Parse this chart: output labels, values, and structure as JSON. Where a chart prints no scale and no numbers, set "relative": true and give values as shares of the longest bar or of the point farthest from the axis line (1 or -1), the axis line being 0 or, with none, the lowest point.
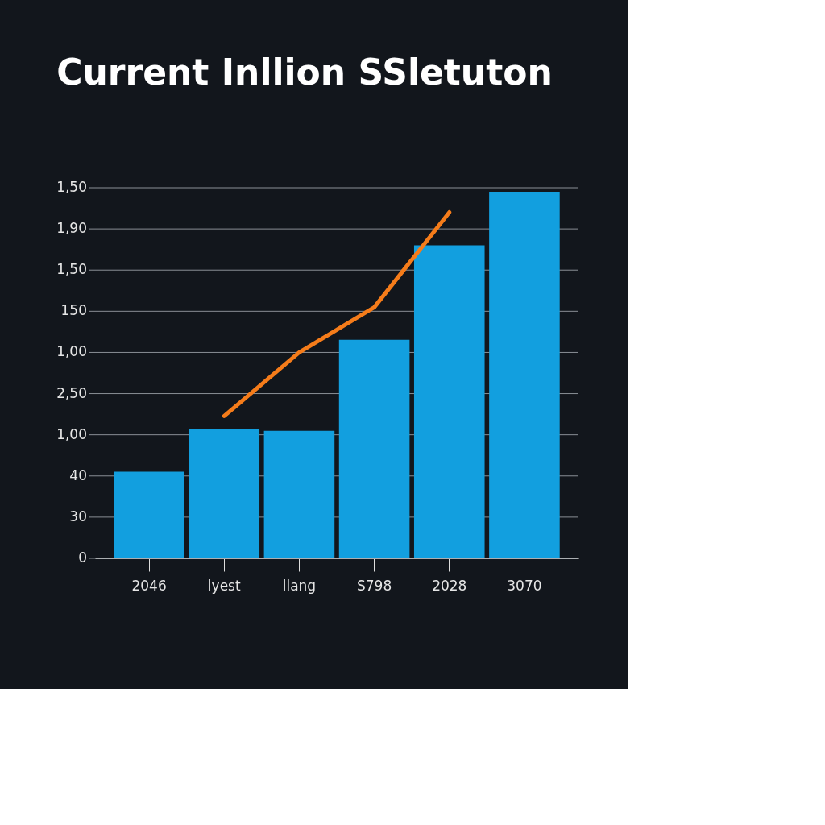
{
  "chart_data": {
    "type": "bar",
    "title": "Current Inllion SSletuton",
    "relative": true,
    "categories": [
      "2046",
      "lyest",
      "llang",
      "S798",
      "2028",
      "3070"
    ],
    "series": [
      {
        "color": "#129fdf",
        "values": [
          0.236,
          0.354,
          0.348,
          0.596,
          0.854,
          1.0
        ]
      },
      {
        "type": "line",
        "color": "#f57c1a",
        "values": [
          null,
          0.388,
          0.562,
          0.685,
          0.944,
          null
        ],
        "line_style": "solid"
      }
    ],
    "annotations": [
      "0",
      "30",
      "40",
      "1,00",
      "2,50",
      "1,00",
      "150",
      "1,50",
      "1,90",
      "1,50"
    ],
    "grid": "y",
    "legend": false
  }
}
